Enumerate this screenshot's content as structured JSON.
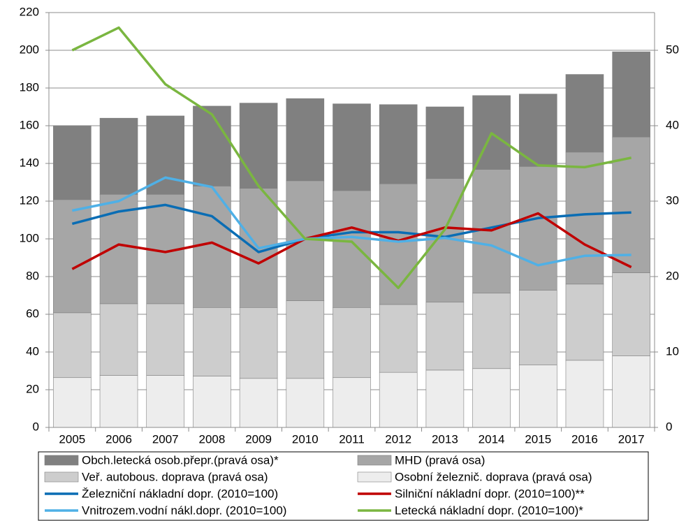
{
  "chart_data": {
    "type": "combo",
    "categories": [
      "2005",
      "2006",
      "2007",
      "2008",
      "2009",
      "2010",
      "2011",
      "2012",
      "2013",
      "2014",
      "2015",
      "2016",
      "2017"
    ],
    "ylim": [
      0,
      220
    ],
    "yticks": [
      0,
      20,
      40,
      60,
      80,
      100,
      120,
      140,
      160,
      180,
      200,
      220
    ],
    "y2lim": [
      0,
      55
    ],
    "y2ticks": [
      0,
      10,
      20,
      30,
      40,
      50
    ],
    "grid": true,
    "series": [
      {
        "name": "Obch.letecká osob.přepr.(pravá osa)*",
        "type": "bar",
        "axis": "y2",
        "color": "#808080",
        "values": [
          9.8,
          10.1,
          10.4,
          10.6,
          11.3,
          10.9,
          11.5,
          10.5,
          9.5,
          9.8,
          9.6,
          10.3,
          11.3
        ]
      },
      {
        "name": "MHD (pravá osa)",
        "type": "bar",
        "axis": "y2",
        "color": "#a6a6a6",
        "values": [
          15.0,
          14.5,
          14.5,
          16.1,
          15.8,
          15.9,
          15.5,
          16.0,
          16.4,
          16.4,
          16.4,
          17.5,
          18.0
        ]
      },
      {
        "name": "Veř. autobous. doprava (pravá osa)",
        "type": "bar",
        "axis": "y2",
        "color": "#cdcdcd",
        "values": [
          8.6,
          9.5,
          9.5,
          9.1,
          9.4,
          10.3,
          9.3,
          9.0,
          9.0,
          10.0,
          9.9,
          10.1,
          11.0
        ]
      },
      {
        "name": "Osobní železnič. doprava (pravá osa)",
        "type": "bar",
        "axis": "y2",
        "color": "#ededed",
        "values": [
          6.6,
          6.9,
          6.9,
          6.8,
          6.5,
          6.5,
          6.6,
          7.3,
          7.6,
          7.8,
          8.3,
          8.9,
          9.5
        ]
      },
      {
        "name": "Železniční nákladní dopr. (2010=100)",
        "type": "line",
        "color": "#0a6db4",
        "values": [
          108,
          114.5,
          118,
          112,
          93,
          100,
          103.5,
          103.5,
          101,
          106,
          111,
          113,
          114
        ]
      },
      {
        "name": "Silniční nákladní dopr. (2010=100)**",
        "type": "line",
        "color": "#c00000",
        "values": [
          84,
          97,
          93,
          98,
          87,
          100,
          106,
          99,
          106,
          104.5,
          113.5,
          97,
          85
        ]
      },
      {
        "name": "Vnitrozem.vodní nákl.dopr. (2010=100)",
        "type": "line",
        "color": "#4fb0e6",
        "values": [
          115,
          120,
          132.5,
          127.5,
          95,
          100,
          101,
          98.5,
          100.5,
          96.5,
          86,
          91,
          91.5
        ]
      },
      {
        "name": "Letecká nákladní dopr. (2010=100)*",
        "type": "line",
        "color": "#7ab640",
        "values": [
          200,
          212,
          182,
          166,
          128,
          100,
          98.5,
          74,
          105,
          156,
          139,
          138,
          143
        ]
      }
    ]
  }
}
